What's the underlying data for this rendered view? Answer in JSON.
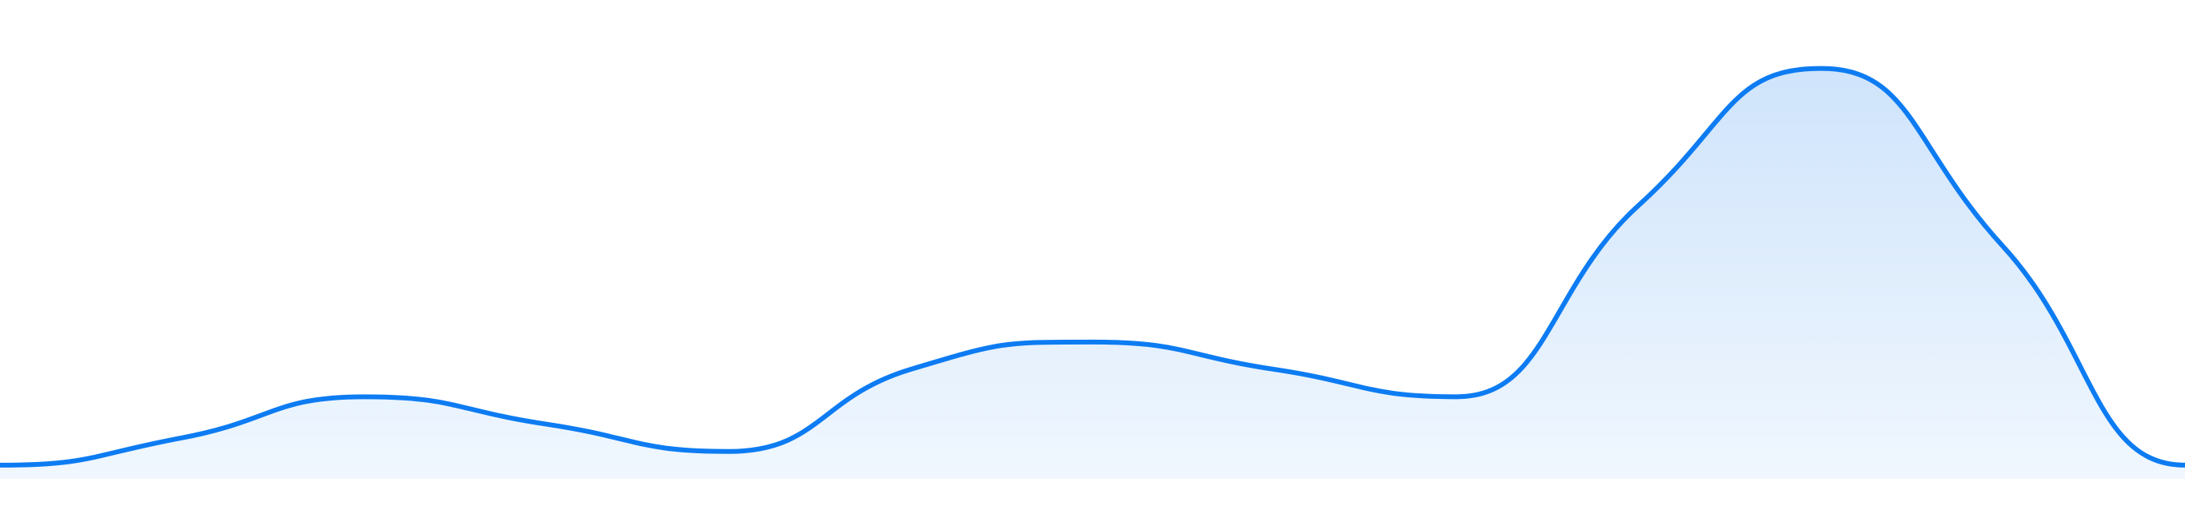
{
  "chart_data": {
    "type": "area",
    "x": [
      0,
      1,
      2,
      3,
      4,
      5,
      6,
      7,
      8,
      9,
      10,
      11,
      12
    ],
    "series": [
      {
        "values": [
          10,
          30,
          60,
          40,
          20,
          80,
          100,
          80,
          60,
          200,
          300,
          170,
          10
        ]
      }
    ],
    "ylim": [
      0,
      350
    ],
    "grid": false,
    "legend": "none",
    "colors": {
      "line": "#0d7cf2",
      "fill_top": "#cfe4fb",
      "fill_bottom": "#f0f7fe"
    }
  }
}
